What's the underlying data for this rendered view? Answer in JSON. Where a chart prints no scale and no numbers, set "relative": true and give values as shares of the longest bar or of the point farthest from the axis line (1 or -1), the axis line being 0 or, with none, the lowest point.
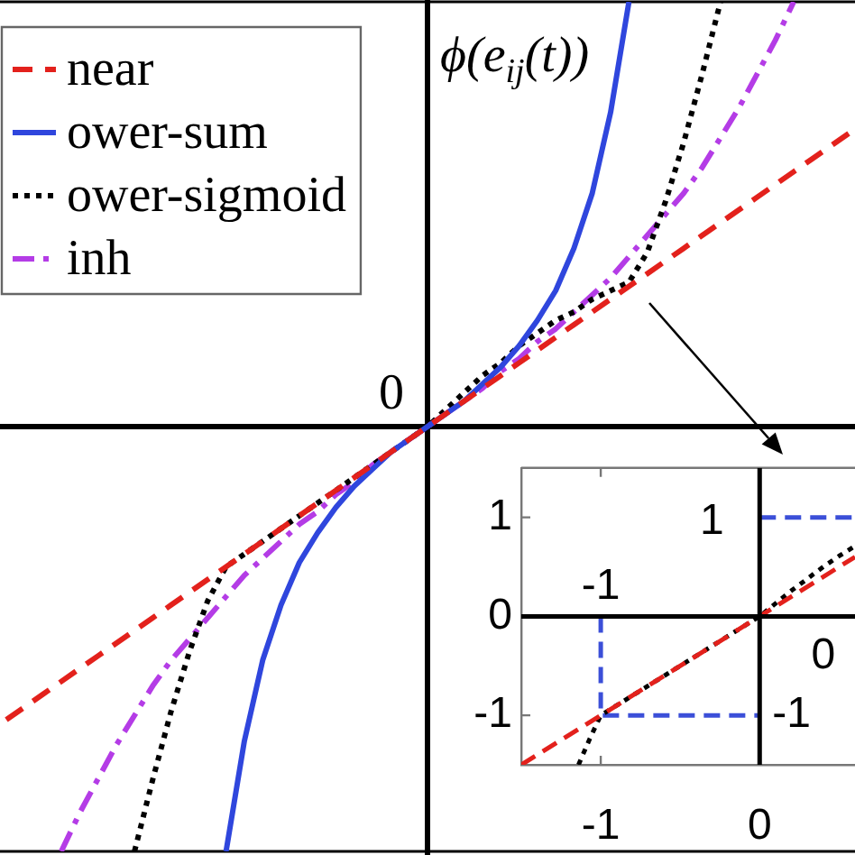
{
  "chart_data": [
    {
      "type": "line",
      "relative": true,
      "ylabel": "ϕ(e$_{ij}$(t))",
      "annotations": [
        "0"
      ],
      "legend": "top left",
      "categories": [
        null,
        null,
        null,
        null,
        null,
        null,
        null,
        null,
        null,
        null,
        null,
        null,
        null,
        null,
        null,
        null,
        null,
        null,
        null,
        null,
        null,
        null,
        null,
        null,
        null,
        null,
        null,
        null,
        null,
        null,
        null,
        null,
        null,
        null,
        null,
        null,
        null,
        null,
        null,
        null,
        null,
        null,
        null,
        null,
        null,
        null,
        null
      ],
      "series": [
        {
          "name": "near",
          "color": "#e3211c",
          "line_style": "dashed",
          "values": [
            -0.69,
            -0.66,
            -0.63,
            -0.6,
            -0.57,
            -0.54,
            -0.51,
            -0.48,
            -0.45,
            -0.42,
            -0.39,
            -0.36,
            -0.33,
            -0.3,
            -0.27,
            -0.24,
            -0.21,
            -0.18,
            -0.15,
            -0.12,
            -0.09,
            -0.06,
            -0.03,
            0,
            0.03,
            0.06,
            0.09,
            0.12,
            0.15,
            0.18,
            0.21,
            0.24,
            0.27,
            0.3,
            0.33,
            0.36,
            0.39,
            0.42,
            0.45,
            0.48,
            0.51,
            0.54,
            0.57,
            0.6,
            0.63,
            0.66,
            0.69
          ]
        },
        {
          "name": "ower-sum",
          "color": "#2f46dd",
          "line_style": "solid",
          "values": [
            null,
            null,
            null,
            null,
            null,
            null,
            null,
            null,
            null,
            null,
            null,
            null,
            -1,
            -0.74,
            -0.55,
            -0.42,
            -0.32,
            -0.25,
            -0.19,
            -0.14,
            -0.1,
            -0.06,
            -0.03,
            0,
            0.03,
            0.06,
            0.1,
            0.14,
            0.19,
            0.25,
            0.32,
            0.42,
            0.55,
            0.74,
            1,
            null,
            null,
            null,
            null,
            null,
            null,
            null,
            null,
            null,
            null,
            null,
            null
          ]
        },
        {
          "name": "ower-sigmoid",
          "color": "#000000",
          "line_style": "dotted",
          "values": [
            null,
            null,
            null,
            null,
            null,
            null,
            null,
            -1,
            -0.83,
            -0.67,
            -0.53,
            -0.41,
            -0.33,
            -0.3,
            -0.27,
            -0.24,
            -0.21,
            -0.18,
            -0.15,
            -0.12,
            -0.09,
            -0.06,
            -0.03,
            0,
            0.04,
            0.08,
            0.12,
            0.15,
            0.19,
            0.22,
            0.25,
            0.27,
            0.3,
            0.32,
            0.34,
            0.41,
            0.53,
            0.67,
            0.83,
            1,
            null,
            null,
            null,
            null,
            null,
            null,
            null
          ]
        },
        {
          "name": "inh",
          "color": "#b43ce6",
          "line_style": "dashdot",
          "values": [
            null,
            null,
            null,
            -1,
            -0.91,
            -0.83,
            -0.75,
            -0.68,
            -0.61,
            -0.55,
            -0.5,
            -0.45,
            -0.4,
            -0.35,
            -0.31,
            -0.27,
            -0.23,
            -0.2,
            -0.16,
            -0.13,
            -0.09,
            -0.06,
            -0.03,
            0,
            0.03,
            0.06,
            0.09,
            0.13,
            0.16,
            0.2,
            0.23,
            0.27,
            0.31,
            0.35,
            0.4,
            0.45,
            0.5,
            0.55,
            0.61,
            0.68,
            0.75,
            0.83,
            0.91,
            1,
            null,
            null,
            null
          ]
        }
      ]
    },
    {
      "type": "line",
      "xlim": [
        -1.5,
        0.6
      ],
      "ylim": [
        -1.5,
        1.5
      ],
      "xticks": [
        -1,
        0
      ],
      "yticks": [
        -1,
        0,
        1
      ],
      "series": [
        {
          "color": "#000000",
          "line_style": "solid",
          "x": [
            0,
            0
          ],
          "values": [
            -1.5,
            1.5
          ]
        },
        {
          "color": "#000000",
          "line_style": "solid",
          "x": [
            -1.5,
            0.6
          ],
          "values": [
            0,
            0
          ]
        },
        {
          "color": "#e3211c",
          "line_style": "dashed",
          "x": [
            -1.5,
            0.6
          ],
          "values": [
            -1.5,
            0.6
          ]
        },
        {
          "color": "#000000",
          "line_style": "dotted",
          "x": [
            -1.14,
            -1.07,
            -1,
            -0.5,
            0,
            0.1,
            0.2,
            0.3,
            0.4,
            0.5,
            0.6
          ],
          "values": [
            -1.5,
            -1.24,
            -1,
            -0.5,
            0,
            0.13,
            0.26,
            0.38,
            0.5,
            0.61,
            0.71
          ]
        },
        {
          "color": "#3b4fd8",
          "line_style": "dashed",
          "x": [
            -1,
            -1,
            0
          ],
          "values": [
            0,
            -1,
            -1
          ]
        },
        {
          "color": "#3b4fd8",
          "line_style": "dashed",
          "x": [
            0,
            0.6
          ],
          "values": [
            1,
            1
          ]
        }
      ],
      "annotations": [
        "1",
        "-1",
        "0",
        "-1"
      ]
    }
  ]
}
